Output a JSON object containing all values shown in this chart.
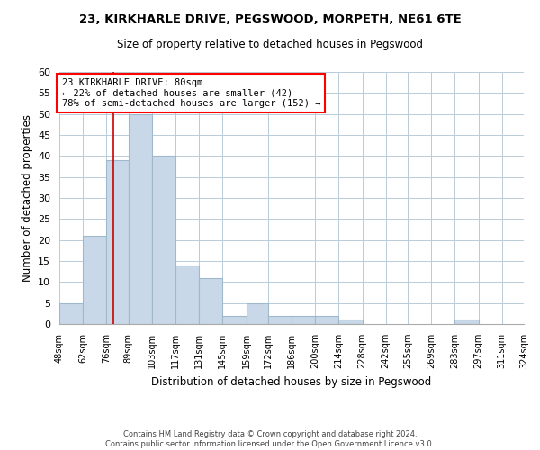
{
  "title": "23, KIRKHARLE DRIVE, PEGSWOOD, MORPETH, NE61 6TE",
  "subtitle": "Size of property relative to detached houses in Pegswood",
  "xlabel": "Distribution of detached houses by size in Pegswood",
  "ylabel": "Number of detached properties",
  "bar_color": "#c8d8e8",
  "bar_edge_color": "#a0b8cc",
  "grid_color": "#b8ccd8",
  "vline_color": "#cc0000",
  "footer_text": "Contains HM Land Registry data © Crown copyright and database right 2024.\nContains public sector information licensed under the Open Government Licence v3.0.",
  "annotation_line1": "23 KIRKHARLE DRIVE: 80sqm",
  "annotation_line2": "← 22% of detached houses are smaller (42)",
  "annotation_line3": "78% of semi-detached houses are larger (152) →",
  "property_size": 80,
  "bin_edges": [
    48,
    62,
    76,
    89,
    103,
    117,
    131,
    145,
    159,
    172,
    186,
    200,
    214,
    228,
    242,
    255,
    269,
    283,
    297,
    311,
    324
  ],
  "bin_labels": [
    "48sqm",
    "62sqm",
    "76sqm",
    "89sqm",
    "103sqm",
    "117sqm",
    "131sqm",
    "145sqm",
    "159sqm",
    "172sqm",
    "186sqm",
    "200sqm",
    "214sqm",
    "228sqm",
    "242sqm",
    "255sqm",
    "269sqm",
    "283sqm",
    "297sqm",
    "311sqm",
    "324sqm"
  ],
  "bar_heights": [
    5,
    21,
    39,
    50,
    40,
    14,
    11,
    2,
    5,
    2,
    2,
    2,
    1,
    0,
    0,
    0,
    0,
    1,
    0,
    0
  ],
  "ylim": [
    0,
    60
  ],
  "yticks": [
    0,
    5,
    10,
    15,
    20,
    25,
    30,
    35,
    40,
    45,
    50,
    55,
    60
  ]
}
